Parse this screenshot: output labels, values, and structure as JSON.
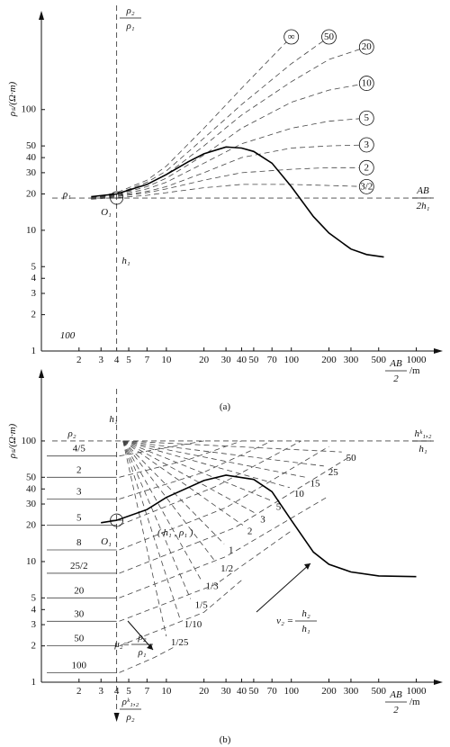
{
  "chart_data": [
    {
      "type": "line",
      "log_x": true,
      "log_y": true,
      "y_label": "ρₛ/(Ω·m)",
      "x_label": {
        "num": "AB",
        "den": "2",
        "suffix": "/m"
      },
      "caption": "(a)",
      "xlim": [
        1,
        1500
      ],
      "ylim": [
        1,
        500
      ],
      "xticks": [
        2,
        3,
        4,
        5,
        7,
        10,
        20,
        30,
        40,
        50,
        70,
        100,
        200,
        300,
        500,
        1000
      ],
      "yticks": [
        1,
        2,
        3,
        4,
        5,
        10,
        20,
        30,
        40,
        50,
        100
      ],
      "ref_x": 4,
      "ref_y": 18.5,
      "label_style": "circled",
      "series": [
        {
          "name": "3/2",
          "color": "#444",
          "dashed": true,
          "label_at": "end",
          "x": [
            2.5,
            4,
            7,
            10,
            20,
            40,
            100,
            200,
            400
          ],
          "values": [
            18.1,
            18.6,
            19.5,
            20.5,
            22.5,
            24,
            24,
            23.5,
            23
          ]
        },
        {
          "name": "2",
          "color": "#444",
          "dashed": true,
          "label_at": "end",
          "x": [
            2.5,
            4,
            7,
            10,
            20,
            40,
            100,
            200,
            400
          ],
          "values": [
            18.2,
            19,
            20.5,
            22,
            26,
            30,
            32,
            33,
            33
          ]
        },
        {
          "name": "3",
          "color": "#444",
          "dashed": true,
          "label_at": "end",
          "x": [
            2.5,
            4,
            7,
            10,
            20,
            40,
            100,
            200,
            400
          ],
          "values": [
            18.3,
            19.3,
            21,
            23,
            30,
            40,
            48,
            50,
            51
          ]
        },
        {
          "name": "5",
          "color": "#444",
          "dashed": true,
          "label_at": "end",
          "x": [
            2.5,
            4,
            7,
            10,
            20,
            40,
            100,
            200,
            400
          ],
          "values": [
            18.4,
            19.5,
            22,
            25,
            36,
            52,
            70,
            80,
            85
          ]
        },
        {
          "name": "10",
          "color": "#444",
          "dashed": true,
          "label_at": "end",
          "x": [
            2.5,
            4,
            7,
            10,
            20,
            40,
            100,
            200,
            400
          ],
          "values": [
            18.4,
            19.8,
            23,
            27,
            42,
            70,
            115,
            145,
            165
          ]
        },
        {
          "name": "20",
          "color": "#444",
          "dashed": true,
          "label_at": "end",
          "x": [
            2.5,
            4,
            7,
            10,
            20,
            40,
            100,
            200,
            400
          ],
          "values": [
            18.5,
            20,
            24,
            29,
            50,
            90,
            170,
            260,
            330
          ]
        },
        {
          "name": "50",
          "color": "#444",
          "dashed": true,
          "label_at": "end",
          "x": [
            2.5,
            4,
            7,
            10,
            20,
            40,
            100,
            200,
            400
          ],
          "values": [
            18.6,
            20,
            25,
            31,
            58,
            110,
            240,
            400,
            null
          ]
        },
        {
          "name": "∞",
          "color": "#444",
          "dashed": true,
          "label_at": "end",
          "x": [
            2.5,
            4,
            7,
            10,
            20,
            40,
            100,
            200,
            400
          ],
          "values": [
            18.6,
            20.5,
            26,
            34,
            70,
            150,
            400,
            null,
            null
          ]
        },
        {
          "color": "#000",
          "dashed": false,
          "x": [
            2.5,
            4,
            7,
            10,
            15,
            20,
            30,
            40,
            50,
            70,
            100,
            150,
            200,
            300,
            400,
            550
          ],
          "values": [
            19,
            20,
            24,
            29,
            37,
            43,
            49,
            48,
            45,
            36,
            23,
            13,
            9.5,
            7,
            6.3,
            6
          ]
        }
      ],
      "annotations": [
        "ρ₁",
        {
          "num": "ρ₂",
          "den": "ρ₁"
        },
        "O₁",
        "h₁",
        "100",
        {
          "num": "AB",
          "den": "2h₁"
        }
      ]
    },
    {
      "type": "line",
      "log_x": true,
      "log_y": true,
      "y_label": "ρₛ/(Ω·m)",
      "x_label": {
        "num": "AB",
        "den": "2",
        "suffix": "/m"
      },
      "caption": "(b)",
      "xlim": [
        1,
        1500
      ],
      "ylim": [
        1,
        300
      ],
      "xticks": [
        2,
        3,
        4,
        5,
        7,
        10,
        20,
        30,
        40,
        50,
        70,
        100,
        200,
        300,
        500,
        1000
      ],
      "yticks": [
        1,
        2,
        3,
        4,
        5,
        10,
        20,
        30,
        40,
        50,
        100
      ],
      "ref_x": 4,
      "ref_y": 100,
      "label_style": "plain",
      "series": [
        {
          "name": "1/25",
          "color": "#444",
          "dashed": true,
          "label_at": "end",
          "x": [
            4.5,
            10
          ],
          "values": [
            100,
            2.4
          ]
        },
        {
          "name": "1/10",
          "color": "#444",
          "dashed": true,
          "label_at": "end",
          "x": [
            4.5,
            12.8
          ],
          "values": [
            100,
            3.4
          ]
        },
        {
          "name": "1/5",
          "color": "#444",
          "dashed": true,
          "label_at": "end",
          "x": [
            4.5,
            15.6
          ],
          "values": [
            100,
            4.9
          ]
        },
        {
          "name": "1/3",
          "color": "#444",
          "dashed": true,
          "label_at": "end",
          "x": [
            4.5,
            19
          ],
          "values": [
            100,
            7
          ]
        },
        {
          "name": "1/2",
          "color": "#444",
          "dashed": true,
          "label_at": "end",
          "x": [
            4.5,
            25
          ],
          "values": [
            100,
            9.8
          ]
        },
        {
          "name": "1",
          "color": "#444",
          "dashed": true,
          "label_at": "end",
          "x": [
            4.5,
            29
          ],
          "values": [
            100,
            14
          ]
        },
        {
          "name": "2",
          "color": "#444",
          "dashed": true,
          "label_at": "end",
          "x": [
            4.5,
            41
          ],
          "values": [
            100,
            20
          ]
        },
        {
          "name": "3",
          "color": "#444",
          "dashed": true,
          "label_at": "end",
          "x": [
            4.5,
            52
          ],
          "values": [
            100,
            25
          ]
        },
        {
          "name": "5",
          "color": "#444",
          "dashed": true,
          "label_at": "end",
          "x": [
            4.5,
            69.5
          ],
          "values": [
            100,
            32
          ]
        },
        {
          "name": "10",
          "color": "#444",
          "dashed": true,
          "label_at": "end",
          "x": [
            4.5,
            97
          ],
          "values": [
            100,
            41
          ]
        },
        {
          "name": "15",
          "color": "#444",
          "dashed": true,
          "label_at": "end",
          "x": [
            4.5,
            130
          ],
          "values": [
            100,
            50
          ]
        },
        {
          "name": "25",
          "color": "#444",
          "dashed": true,
          "label_at": "end",
          "x": [
            4.5,
            182
          ],
          "values": [
            100,
            62
          ]
        },
        {
          "name": "50",
          "color": "#444",
          "dashed": true,
          "label_at": "end",
          "x": [
            4.5,
            253
          ],
          "values": [
            100,
            81
          ]
        },
        {
          "name": "4/5",
          "color": "#444",
          "dashed": true,
          "label_at": "start",
          "x": [
            4.2,
            10,
            20
          ],
          "values": [
            75,
            88,
            100
          ]
        },
        {
          "name": "2",
          "color": "#444",
          "dashed": true,
          "label_at": "start",
          "x": [
            4.2,
            15,
            40
          ],
          "values": [
            50,
            70,
            100
          ]
        },
        {
          "name": "3",
          "color": "#444",
          "dashed": true,
          "label_at": "start",
          "x": [
            4.2,
            20,
            70
          ],
          "values": [
            33,
            55,
            100
          ]
        },
        {
          "name": "5",
          "color": "#444",
          "dashed": true,
          "label_at": "start",
          "x": [
            4.2,
            25,
            120
          ],
          "values": [
            20,
            42,
            100
          ]
        },
        {
          "name": "8",
          "color": "#444",
          "dashed": true,
          "label_at": "start",
          "x": [
            4.2,
            30,
            200
          ],
          "values": [
            12.5,
            28,
            90
          ]
        },
        {
          "name": "25/2",
          "color": "#444",
          "dashed": true,
          "label_at": "start",
          "x": [
            4.2,
            35,
            300
          ],
          "values": [
            8,
            19,
            75
          ]
        },
        {
          "name": "20",
          "color": "#444",
          "dashed": true,
          "label_at": "start",
          "x": [
            4.2,
            30,
            200
          ],
          "values": [
            5,
            11,
            35
          ]
        },
        {
          "name": "30",
          "color": "#444",
          "dashed": true,
          "label_at": "start",
          "x": [
            4.2,
            25,
            100
          ],
          "values": [
            3.2,
            6.5,
            18
          ]
        },
        {
          "name": "50",
          "color": "#444",
          "dashed": true,
          "label_at": "start",
          "x": [
            4.2,
            20,
            40
          ],
          "values": [
            2,
            3.8,
            7
          ]
        },
        {
          "name": "100",
          "color": "#444",
          "dashed": true,
          "label_at": "start",
          "x": [
            4.2,
            8,
            12
          ],
          "values": [
            1.2,
            1.6,
            2
          ]
        },
        {
          "color": "#000",
          "dashed": false,
          "x": [
            3,
            4,
            7,
            10,
            20,
            30,
            50,
            70,
            100,
            150,
            200,
            300,
            500,
            1000
          ],
          "values": [
            21,
            22,
            27,
            34,
            47,
            52,
            48,
            38,
            22,
            12,
            9.5,
            8.2,
            7.6,
            7.5
          ]
        }
      ],
      "annotations": [
        "ρ₂",
        "h₁",
        {
          "num": "hᵏ₁,₂",
          "den": "h₁"
        },
        "O₁",
        "( h₁ , ρ₁ )",
        {
          "lhs": "ν₂ =",
          "num": "h₂",
          "den": "h₁"
        },
        {
          "lhs": "μ₂=",
          "num": "ρ₂",
          "den": "ρ₁"
        },
        {
          "num": "ρᵏ₁,₂",
          "den": "ρ₂"
        }
      ]
    }
  ]
}
